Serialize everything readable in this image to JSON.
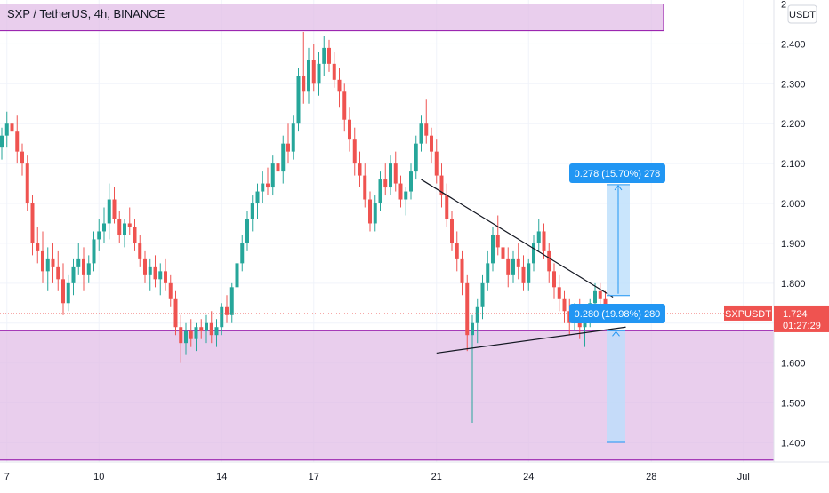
{
  "header": {
    "title": "SXP / TetherUS, 4h, BINANCE"
  },
  "currency_label": "USDT",
  "price_tag": {
    "symbol": "SXPUSDT",
    "price": "1.724",
    "countdown": "01:27:29",
    "value": 1.724
  },
  "measure_upper": {
    "label": "0.278 (15.70%) 278",
    "top": 2.047,
    "bottom": 1.769
  },
  "measure_lower": {
    "label": "0.280 (19.98%) 280",
    "top": 1.681,
    "bottom": 1.401
  },
  "zones": [
    {
      "name": "resistance-zone",
      "top": 2.5,
      "bottom": 2.433
    },
    {
      "name": "support-zone",
      "top": 1.681,
      "bottom": 1.357
    }
  ],
  "colors": {
    "up": "#26a69a",
    "down": "#ef5350",
    "zone_fill": "#e1bee7",
    "zone_border": "#9c27b0",
    "tag_bg": "#ef5350",
    "measure_label_bg": "#2196f3",
    "measure_fill": "#bbdefb",
    "measure_line": "#2196f3",
    "price_line": "#ef5350"
  },
  "chart_data": {
    "type": "candlestick",
    "title": "SXP / TetherUS, 4h, BINANCE",
    "ylim": [
      1.352,
      2.51
    ],
    "y_ticks": [
      "2.400",
      "2.300",
      "2.200",
      "2.100",
      "2.000",
      "1.900",
      "1.800",
      "1.600",
      "1.500",
      "1.400"
    ],
    "y_tick_values": [
      2.4,
      2.3,
      2.2,
      2.1,
      2.0,
      1.9,
      1.8,
      1.6,
      1.5,
      1.4
    ],
    "x_ticks": [
      "7",
      "10",
      "14",
      "17",
      "21",
      "24",
      "28",
      "Jul"
    ],
    "x_tick_dates": [
      "2021-06-07",
      "2021-06-10",
      "2021-06-14",
      "2021-06-17",
      "2021-06-21",
      "2021-06-24",
      "2021-06-28",
      "2021-07-01"
    ],
    "x_start": "2021-06-06 20:00",
    "interval_hours": 4,
    "ohlc": [
      [
        2.14,
        2.19,
        2.11,
        2.17
      ],
      [
        2.17,
        2.23,
        2.14,
        2.2
      ],
      [
        2.2,
        2.25,
        2.16,
        2.18
      ],
      [
        2.18,
        2.22,
        2.1,
        2.13
      ],
      [
        2.13,
        2.15,
        2.07,
        2.1
      ],
      [
        2.1,
        2.12,
        1.98,
        2.0
      ],
      [
        2.0,
        2.02,
        1.87,
        1.9
      ],
      [
        1.9,
        1.94,
        1.85,
        1.88
      ],
      [
        1.88,
        1.93,
        1.8,
        1.83
      ],
      [
        1.83,
        1.89,
        1.78,
        1.86
      ],
      [
        1.86,
        1.9,
        1.8,
        1.84
      ],
      [
        1.84,
        1.88,
        1.78,
        1.81
      ],
      [
        1.81,
        1.85,
        1.72,
        1.75
      ],
      [
        1.75,
        1.82,
        1.73,
        1.8
      ],
      [
        1.8,
        1.86,
        1.77,
        1.84
      ],
      [
        1.84,
        1.9,
        1.82,
        1.86
      ],
      [
        1.86,
        1.89,
        1.78,
        1.82
      ],
      [
        1.82,
        1.87,
        1.8,
        1.85
      ],
      [
        1.85,
        1.93,
        1.83,
        1.91
      ],
      [
        1.91,
        1.96,
        1.88,
        1.93
      ],
      [
        1.93,
        1.99,
        1.9,
        1.95
      ],
      [
        1.95,
        2.05,
        1.91,
        2.01
      ],
      [
        2.01,
        2.04,
        1.95,
        1.96
      ],
      [
        1.96,
        1.98,
        1.9,
        1.92
      ],
      [
        1.92,
        1.96,
        1.89,
        1.95
      ],
      [
        1.95,
        1.99,
        1.92,
        1.94
      ],
      [
        1.94,
        1.96,
        1.88,
        1.9
      ],
      [
        1.9,
        1.92,
        1.84,
        1.86
      ],
      [
        1.86,
        1.88,
        1.8,
        1.82
      ],
      [
        1.82,
        1.86,
        1.78,
        1.84
      ],
      [
        1.84,
        1.87,
        1.79,
        1.81
      ],
      [
        1.81,
        1.85,
        1.77,
        1.83
      ],
      [
        1.83,
        1.86,
        1.78,
        1.8
      ],
      [
        1.8,
        1.82,
        1.74,
        1.76
      ],
      [
        1.76,
        1.78,
        1.67,
        1.69
      ],
      [
        1.69,
        1.72,
        1.6,
        1.65
      ],
      [
        1.65,
        1.7,
        1.62,
        1.68
      ],
      [
        1.68,
        1.71,
        1.64,
        1.66
      ],
      [
        1.66,
        1.7,
        1.63,
        1.69
      ],
      [
        1.69,
        1.71,
        1.66,
        1.68
      ],
      [
        1.68,
        1.72,
        1.65,
        1.7
      ],
      [
        1.7,
        1.73,
        1.65,
        1.67
      ],
      [
        1.67,
        1.71,
        1.64,
        1.69
      ],
      [
        1.69,
        1.75,
        1.67,
        1.74
      ],
      [
        1.74,
        1.77,
        1.7,
        1.72
      ],
      [
        1.72,
        1.8,
        1.7,
        1.79
      ],
      [
        1.79,
        1.86,
        1.77,
        1.85
      ],
      [
        1.85,
        1.92,
        1.83,
        1.9
      ],
      [
        1.9,
        1.98,
        1.88,
        1.96
      ],
      [
        1.96,
        2.02,
        1.93,
        2.0
      ],
      [
        2.0,
        2.05,
        1.96,
        2.03
      ],
      [
        2.03,
        2.08,
        2.0,
        2.05
      ],
      [
        2.05,
        2.09,
        2.02,
        2.04
      ],
      [
        2.04,
        2.12,
        2.02,
        2.1
      ],
      [
        2.1,
        2.15,
        2.06,
        2.08
      ],
      [
        2.08,
        2.17,
        2.05,
        2.15
      ],
      [
        2.15,
        2.2,
        2.1,
        2.13
      ],
      [
        2.13,
        2.22,
        2.11,
        2.2
      ],
      [
        2.2,
        2.34,
        2.18,
        2.32
      ],
      [
        2.32,
        2.43,
        2.25,
        2.28
      ],
      [
        2.28,
        2.39,
        2.25,
        2.36
      ],
      [
        2.36,
        2.4,
        2.28,
        2.3
      ],
      [
        2.3,
        2.38,
        2.27,
        2.35
      ],
      [
        2.35,
        2.42,
        2.32,
        2.39
      ],
      [
        2.39,
        2.41,
        2.33,
        2.35
      ],
      [
        2.35,
        2.38,
        2.29,
        2.31
      ],
      [
        2.31,
        2.34,
        2.24,
        2.28
      ],
      [
        2.28,
        2.3,
        2.18,
        2.21
      ],
      [
        2.21,
        2.24,
        2.13,
        2.16
      ],
      [
        2.16,
        2.19,
        2.07,
        2.1
      ],
      [
        2.1,
        2.13,
        2.04,
        2.07
      ],
      [
        2.07,
        2.1,
        1.99,
        2.01
      ],
      [
        2.01,
        2.03,
        1.93,
        1.95
      ],
      [
        1.95,
        2.02,
        1.93,
        2.0
      ],
      [
        2.0,
        2.08,
        1.98,
        2.06
      ],
      [
        2.06,
        2.1,
        2.02,
        2.04
      ],
      [
        2.04,
        2.12,
        2.02,
        2.1
      ],
      [
        2.1,
        2.13,
        2.03,
        2.05
      ],
      [
        2.05,
        2.07,
        1.99,
        2.01
      ],
      [
        2.01,
        2.04,
        1.97,
        2.03
      ],
      [
        2.03,
        2.1,
        2.01,
        2.08
      ],
      [
        2.08,
        2.17,
        2.06,
        2.15
      ],
      [
        2.15,
        2.22,
        2.13,
        2.2
      ],
      [
        2.2,
        2.26,
        2.15,
        2.17
      ],
      [
        2.17,
        2.19,
        2.1,
        2.13
      ],
      [
        2.13,
        2.16,
        2.05,
        2.07
      ],
      [
        2.07,
        2.1,
        1.99,
        2.02
      ],
      [
        2.02,
        2.05,
        1.94,
        1.96
      ],
      [
        1.96,
        1.98,
        1.88,
        1.9
      ],
      [
        1.9,
        1.93,
        1.83,
        1.86
      ],
      [
        1.86,
        1.88,
        1.77,
        1.8
      ],
      [
        1.8,
        1.82,
        1.63,
        1.67
      ],
      [
        1.67,
        1.72,
        1.45,
        1.7
      ],
      [
        1.7,
        1.76,
        1.65,
        1.74
      ],
      [
        1.74,
        1.82,
        1.71,
        1.8
      ],
      [
        1.8,
        1.88,
        1.78,
        1.85
      ],
      [
        1.85,
        1.94,
        1.83,
        1.92
      ],
      [
        1.92,
        1.97,
        1.87,
        1.89
      ],
      [
        1.89,
        1.92,
        1.83,
        1.86
      ],
      [
        1.86,
        1.89,
        1.79,
        1.82
      ],
      [
        1.82,
        1.88,
        1.8,
        1.86
      ],
      [
        1.86,
        1.9,
        1.81,
        1.84
      ],
      [
        1.84,
        1.87,
        1.78,
        1.8
      ],
      [
        1.8,
        1.86,
        1.78,
        1.85
      ],
      [
        1.85,
        1.92,
        1.83,
        1.9
      ],
      [
        1.9,
        1.96,
        1.88,
        1.93
      ],
      [
        1.93,
        1.95,
        1.86,
        1.88
      ],
      [
        1.88,
        1.9,
        1.8,
        1.83
      ],
      [
        1.83,
        1.85,
        1.76,
        1.79
      ],
      [
        1.79,
        1.82,
        1.73,
        1.76
      ],
      [
        1.76,
        1.78,
        1.7,
        1.73
      ],
      [
        1.73,
        1.76,
        1.67,
        1.7
      ],
      [
        1.7,
        1.75,
        1.68,
        1.73
      ],
      [
        1.73,
        1.76,
        1.66,
        1.69
      ],
      [
        1.69,
        1.73,
        1.64,
        1.71
      ],
      [
        1.71,
        1.76,
        1.69,
        1.75
      ],
      [
        1.75,
        1.8,
        1.72,
        1.78
      ],
      [
        1.78,
        1.8,
        1.74,
        1.76
      ],
      [
        1.76,
        1.78,
        1.71,
        1.724
      ]
    ]
  }
}
